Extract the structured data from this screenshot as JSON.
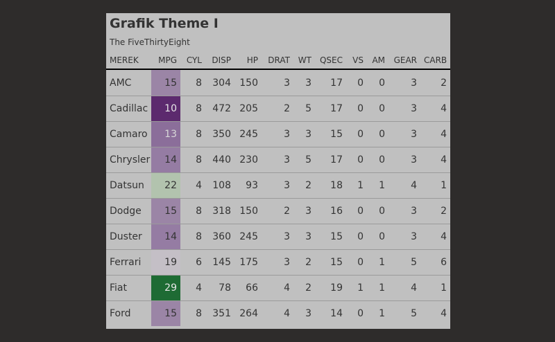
{
  "header": {
    "title": "Grafik Theme I",
    "subtitle": "The FiveThirtyEight"
  },
  "table": {
    "columns": [
      "MEREK",
      "MPG",
      "CYL",
      "DISP",
      "HP",
      "DRAT",
      "WT",
      "QSEC",
      "VS",
      "AM",
      "GEAR",
      "CARB"
    ],
    "rows": [
      {
        "cells": [
          "AMC",
          "15",
          "8",
          "304",
          "150",
          "3",
          "3",
          "17",
          "0",
          "0",
          "3",
          "2"
        ],
        "mpg_color": "#9b85a6",
        "mpg_text_color": "#333333"
      },
      {
        "cells": [
          "Cadillac",
          "10",
          "8",
          "472",
          "205",
          "2",
          "5",
          "17",
          "0",
          "0",
          "3",
          "4"
        ],
        "mpg_color": "#5c2a6e",
        "mpg_text_color": "#e8e8e8"
      },
      {
        "cells": [
          "Camaro",
          "13",
          "8",
          "350",
          "245",
          "3",
          "3",
          "15",
          "0",
          "0",
          "3",
          "4"
        ],
        "mpg_color": "#8b6e9a",
        "mpg_text_color": "#d8d8d8"
      },
      {
        "cells": [
          "Chrysler",
          "14",
          "8",
          "440",
          "230",
          "3",
          "5",
          "17",
          "0",
          "0",
          "3",
          "4"
        ],
        "mpg_color": "#957ca3",
        "mpg_text_color": "#333333"
      },
      {
        "cells": [
          "Datsun",
          "22",
          "4",
          "108",
          "93",
          "3",
          "2",
          "18",
          "1",
          "1",
          "4",
          "1"
        ],
        "mpg_color": "#b2c3ae",
        "mpg_text_color": "#333333"
      },
      {
        "cells": [
          "Dodge",
          "15",
          "8",
          "318",
          "150",
          "2",
          "3",
          "16",
          "0",
          "0",
          "3",
          "2"
        ],
        "mpg_color": "#9b85a6",
        "mpg_text_color": "#333333"
      },
      {
        "cells": [
          "Duster",
          "14",
          "8",
          "360",
          "245",
          "3",
          "3",
          "15",
          "0",
          "0",
          "3",
          "4"
        ],
        "mpg_color": "#957ca3",
        "mpg_text_color": "#333333"
      },
      {
        "cells": [
          "Ferrari",
          "19",
          "6",
          "145",
          "175",
          "3",
          "2",
          "15",
          "0",
          "1",
          "5",
          "6"
        ],
        "mpg_color": "#c4bfc6",
        "mpg_text_color": "#333333"
      },
      {
        "cells": [
          "Fiat",
          "29",
          "4",
          "78",
          "66",
          "4",
          "2",
          "19",
          "1",
          "1",
          "4",
          "1"
        ],
        "mpg_color": "#1e6b34",
        "mpg_text_color": "#e8e8e8"
      },
      {
        "cells": [
          "Ford",
          "15",
          "8",
          "351",
          "264",
          "4",
          "3",
          "14",
          "0",
          "1",
          "5",
          "4"
        ],
        "mpg_color": "#9b85a6",
        "mpg_text_color": "#333333"
      }
    ]
  },
  "colors": {
    "page_background": "#2e2c2b",
    "card_background": "#c0c0c0",
    "text": "#333333",
    "header_rule": "#000000",
    "row_divider": "#9a9a9a"
  }
}
